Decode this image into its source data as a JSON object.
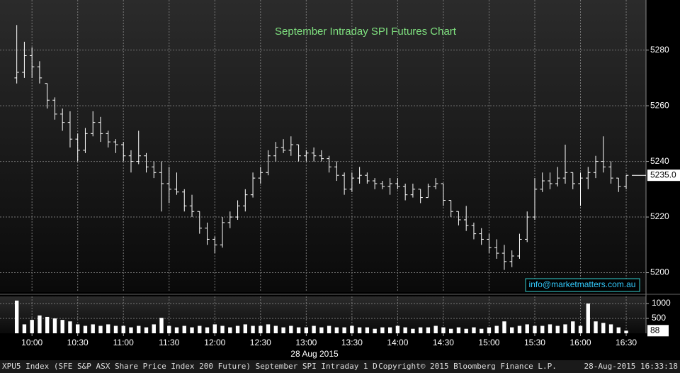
{
  "chart_data": {
    "type": "ohlc",
    "title": "September Intraday SPI Futures Chart",
    "x": [
      590,
      595,
      600,
      605,
      610,
      615,
      620,
      625,
      630,
      635,
      640,
      645,
      650,
      655,
      660,
      665,
      670,
      675,
      680,
      685,
      690,
      695,
      700,
      705,
      710,
      715,
      720,
      725,
      730,
      735,
      740,
      745,
      750,
      755,
      760,
      765,
      770,
      775,
      780,
      785,
      790,
      795,
      800,
      805,
      810,
      815,
      820,
      825,
      830,
      835,
      840,
      845,
      850,
      855,
      860,
      865,
      870,
      875,
      880,
      885,
      890,
      895,
      900,
      905,
      910,
      915,
      920,
      925,
      930,
      935,
      940,
      945,
      950,
      955,
      960,
      965,
      970,
      975,
      980,
      985,
      990
    ],
    "open": [
      5270,
      5272,
      5278,
      5274,
      5268,
      5262,
      5257,
      5254,
      5248,
      5244,
      5250,
      5254,
      5250,
      5247,
      5246,
      5242,
      5240,
      5242,
      5238,
      5236,
      5232,
      5230,
      5229,
      5224,
      5222,
      5216,
      5212,
      5210,
      5218,
      5220,
      5224,
      5228,
      5234,
      5236,
      5242,
      5245,
      5244,
      5246,
      5242,
      5243,
      5242,
      5241,
      5238,
      5235,
      5230,
      5234,
      5235,
      5233,
      5232,
      5231,
      5232,
      5231,
      5228,
      5230,
      5227,
      5231,
      5232,
      5226,
      5222,
      5219,
      5217,
      5214,
      5212,
      5209,
      5207,
      5204,
      5206,
      5212,
      5220,
      5230,
      5233,
      5232,
      5234,
      5236,
      5232,
      5234,
      5236,
      5240,
      5238,
      5234,
      5231
    ],
    "high": [
      5289,
      5283,
      5281,
      5276,
      5268,
      5263,
      5259,
      5258,
      5250,
      5252,
      5258,
      5256,
      5251,
      5248,
      5247,
      5244,
      5251,
      5243,
      5240,
      5240,
      5238,
      5236,
      5230,
      5228,
      5222,
      5218,
      5213,
      5220,
      5222,
      5226,
      5230,
      5236,
      5238,
      5244,
      5247,
      5248,
      5249,
      5246,
      5244,
      5245,
      5244,
      5242,
      5240,
      5236,
      5236,
      5238,
      5236,
      5234,
      5233,
      5234,
      5234,
      5232,
      5232,
      5230,
      5232,
      5234,
      5232,
      5226,
      5222,
      5224,
      5218,
      5216,
      5214,
      5212,
      5210,
      5208,
      5214,
      5222,
      5234,
      5236,
      5236,
      5238,
      5246,
      5236,
      5236,
      5238,
      5242,
      5249,
      5240,
      5234,
      5235
    ],
    "low": [
      5268,
      5270,
      5270,
      5268,
      5259,
      5255,
      5251,
      5245,
      5240,
      5243,
      5249,
      5247,
      5245,
      5243,
      5240,
      5236,
      5239,
      5236,
      5234,
      5222,
      5225,
      5228,
      5222,
      5220,
      5214,
      5210,
      5207,
      5209,
      5216,
      5219,
      5222,
      5227,
      5232,
      5235,
      5240,
      5243,
      5242,
      5240,
      5240,
      5240,
      5240,
      5236,
      5233,
      5228,
      5229,
      5232,
      5232,
      5230,
      5230,
      5228,
      5230,
      5226,
      5227,
      5225,
      5227,
      5230,
      5224,
      5220,
      5217,
      5215,
      5212,
      5210,
      5207,
      5205,
      5201,
      5202,
      5205,
      5211,
      5219,
      5229,
      5230,
      5231,
      5232,
      5230,
      5224,
      5230,
      5234,
      5236,
      5232,
      5229,
      5230
    ],
    "close": [
      5272,
      5278,
      5274,
      5270,
      5262,
      5257,
      5254,
      5248,
      5244,
      5250,
      5254,
      5250,
      5247,
      5246,
      5242,
      5240,
      5242,
      5238,
      5236,
      5232,
      5230,
      5229,
      5224,
      5222,
      5216,
      5212,
      5210,
      5218,
      5220,
      5224,
      5228,
      5234,
      5236,
      5242,
      5245,
      5244,
      5246,
      5242,
      5243,
      5242,
      5241,
      5238,
      5235,
      5230,
      5234,
      5235,
      5233,
      5232,
      5231,
      5232,
      5231,
      5228,
      5230,
      5227,
      5231,
      5232,
      5226,
      5222,
      5219,
      5217,
      5214,
      5212,
      5209,
      5207,
      5204,
      5206,
      5212,
      5220,
      5230,
      5233,
      5232,
      5234,
      5236,
      5232,
      5234,
      5236,
      5240,
      5238,
      5234,
      5231,
      5235
    ],
    "volume": [
      1100,
      300,
      450,
      600,
      550,
      500,
      450,
      400,
      300,
      250,
      300,
      250,
      300,
      250,
      250,
      200,
      250,
      200,
      300,
      520,
      250,
      200,
      250,
      200,
      250,
      200,
      300,
      250,
      200,
      250,
      300,
      250,
      250,
      300,
      250,
      200,
      250,
      200,
      200,
      250,
      200,
      250,
      200,
      200,
      250,
      200,
      200,
      150,
      200,
      200,
      250,
      200,
      150,
      200,
      200,
      250,
      200,
      150,
      200,
      150,
      200,
      150,
      200,
      250,
      400,
      200,
      250,
      300,
      250,
      250,
      300,
      250,
      300,
      400,
      250,
      1000,
      400,
      350,
      300,
      200,
      88
    ],
    "color": "#ffffff",
    "volume_color": "#ffffff",
    "xlim": [
      579,
      1003
    ],
    "xticks": [
      {
        "value": 600,
        "label": "10:00"
      },
      {
        "value": 630,
        "label": "10:30"
      },
      {
        "value": 660,
        "label": "11:00"
      },
      {
        "value": 690,
        "label": "11:30"
      },
      {
        "value": 720,
        "label": "12:00"
      },
      {
        "value": 750,
        "label": "12:30"
      },
      {
        "value": 780,
        "label": "13:00"
      },
      {
        "value": 810,
        "label": "13:30"
      },
      {
        "value": 840,
        "label": "14:00"
      },
      {
        "value": 870,
        "label": "14:30"
      },
      {
        "value": 900,
        "label": "15:00"
      },
      {
        "value": 930,
        "label": "15:30"
      },
      {
        "value": 960,
        "label": "16:00"
      },
      {
        "value": 990,
        "label": "16:30"
      }
    ],
    "ylim": [
      5193,
      5298
    ],
    "yticks": [
      5200,
      5220,
      5240,
      5260,
      5280
    ],
    "y2lim": [
      0,
      1240
    ],
    "y2ticks": [
      500,
      1000
    ],
    "last_price": {
      "value": 5235,
      "label": "5235.0"
    },
    "last_volume": 88,
    "date_label": "28 Aug 2015",
    "watermark": "info@marketmatters.com.au",
    "grid": true
  },
  "footer": {
    "left": "XPU5 Index (SFE S&P ASX Share Price Index 200 Future) September SPI Intraday 1 D",
    "center": "Copyright© 2015 Bloomberg Finance L.P.",
    "right": "28-Aug-2015 16:33:18"
  }
}
